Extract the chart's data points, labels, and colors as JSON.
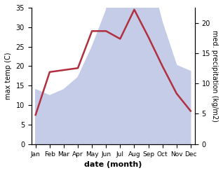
{
  "months": [
    "Jan",
    "Feb",
    "Mar",
    "Apr",
    "May",
    "Jun",
    "Jul",
    "Aug",
    "Sep",
    "Oct",
    "Nov",
    "Dec"
  ],
  "temp": [
    7.5,
    18.5,
    19.0,
    19.5,
    29.0,
    29.0,
    27.0,
    34.5,
    27.5,
    20.0,
    13.0,
    8.5
  ],
  "precip": [
    9,
    8,
    9,
    11,
    16,
    22,
    32,
    32,
    29,
    20,
    13,
    12
  ],
  "temp_color": "#b03040",
  "precip_fill_color": "#c5cce8",
  "temp_ylim": [
    0,
    35
  ],
  "precip_ylim": [
    0,
    22.5
  ],
  "temp_yticks": [
    0,
    5,
    10,
    15,
    20,
    25,
    30,
    35
  ],
  "precip_yticks": [
    0,
    5,
    10,
    15,
    20
  ],
  "xlabel": "date (month)",
  "ylabel_left": "max temp (C)",
  "ylabel_right": "med. precipitation (kg/m2)",
  "bg_color": "#ffffff"
}
